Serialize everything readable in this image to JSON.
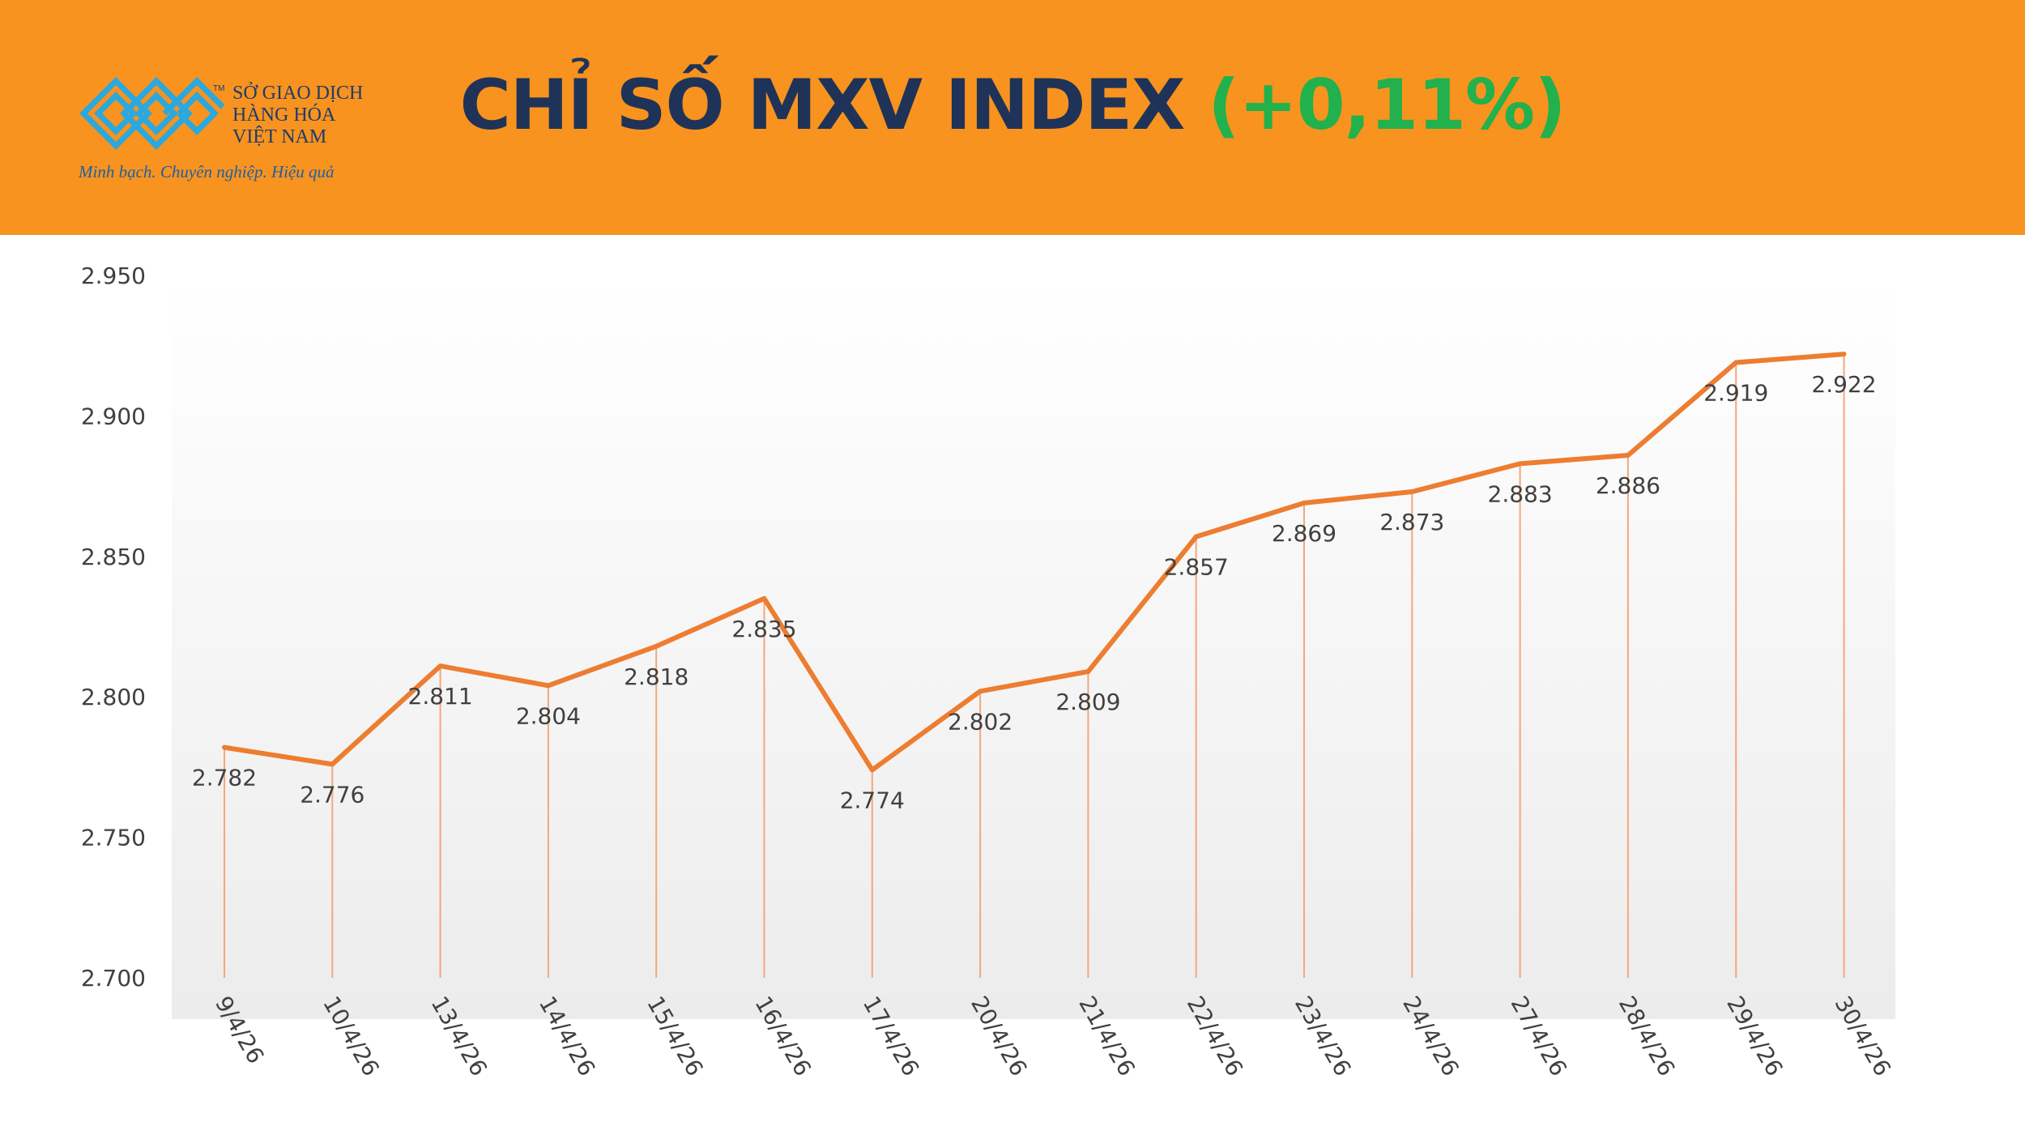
{
  "header": {
    "title": "CHỈ SỐ MXV INDEX",
    "change": "(+0,11%)",
    "colors": {
      "background": "#f7931e",
      "title": "#1f3358",
      "change": "#22b14c"
    }
  },
  "logo": {
    "icon": "mxv-logo-icon",
    "tm": "TM",
    "lines": [
      "SỞ GIAO DỊCH",
      "HÀNG HÓA",
      "VIỆT NAM"
    ],
    "slogan": "Minh bạch. Chuyên nghiệp. Hiệu quả"
  },
  "chart_data": {
    "type": "line",
    "title": "",
    "xlabel": "",
    "ylabel": "",
    "categories": [
      "9/4/26",
      "10/4/26",
      "13/4/26",
      "14/4/26",
      "15/4/26",
      "16/4/26",
      "17/4/26",
      "20/4/26",
      "21/4/26",
      "22/4/26",
      "23/4/26",
      "24/4/26",
      "27/4/26",
      "28/4/26",
      "29/4/26",
      "30/4/26"
    ],
    "values": [
      2782,
      2776,
      2811,
      2804,
      2818,
      2835,
      2774,
      2802,
      2809,
      2857,
      2869,
      2873,
      2883,
      2886,
      2919,
      2922
    ],
    "data_labels": [
      "2.782",
      "2.776",
      "2.811",
      "2.804",
      "2.818",
      "2.835",
      "2.774",
      "2.802",
      "2.809",
      "2.857",
      "2.869",
      "2.873",
      "2.883",
      "2.886",
      "2.919",
      "2.922"
    ],
    "ylim": [
      2700,
      2950
    ],
    "yticks": [
      2700,
      2750,
      2800,
      2850,
      2900,
      2950
    ],
    "ytick_labels": [
      "2.700",
      "2.750",
      "2.800",
      "2.850",
      "2.900",
      "2.950"
    ],
    "drop_lines": true,
    "grid": false,
    "legend": "none",
    "colors": {
      "line": "#ed7d31",
      "drop_line": "#f4a77a",
      "text": "#404040"
    }
  }
}
